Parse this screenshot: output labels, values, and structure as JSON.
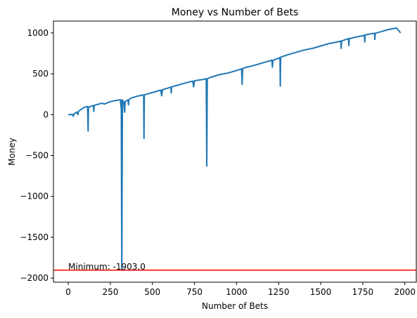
{
  "chart_data": {
    "type": "line",
    "title": "Money vs Number of Bets",
    "xlabel": "Number of Bets",
    "ylabel": "Money",
    "xlim": [
      -88,
      2068
    ],
    "ylim": [
      -2050,
      1145
    ],
    "xticks": [
      0,
      250,
      500,
      750,
      1000,
      1250,
      1500,
      1750,
      2000
    ],
    "yticks": [
      -2000,
      -1500,
      -1000,
      -500,
      0,
      500,
      1000
    ],
    "grid": false,
    "series": [
      {
        "color": "#1f77b4",
        "x": [
          0,
          25,
          30,
          33,
          35,
          50,
          58,
          60,
          80,
          95,
          115,
          118,
          120,
          145,
          150,
          152,
          154,
          156,
          200,
          215,
          250,
          300,
          310,
          313,
          315,
          318,
          322,
          330,
          335,
          338,
          340,
          345,
          350,
          355,
          358,
          360,
          362,
          370,
          400,
          440,
          448,
          450,
          452,
          455,
          500,
          550,
          555,
          560,
          600,
          610,
          612,
          614,
          650,
          700,
          740,
          745,
          750,
          800,
          820,
          823,
          826,
          829,
          832,
          850,
          900,
          950,
          1000,
          1030,
          1033,
          1036,
          1040,
          1050,
          1100,
          1150,
          1200,
          1210,
          1213,
          1216,
          1250,
          1258,
          1260,
          1262,
          1265,
          1300,
          1350,
          1400,
          1450,
          1500,
          1550,
          1600,
          1620,
          1622,
          1624,
          1650,
          1665,
          1667,
          1670,
          1700,
          1760,
          1762,
          1764,
          1800,
          1820,
          1822,
          1824,
          1850,
          1900,
          1950,
          1975
        ],
        "y": [
          0,
          2,
          -20,
          5,
          10,
          30,
          0,
          40,
          70,
          90,
          100,
          -200,
          90,
          110,
          110,
          40,
          110,
          115,
          140,
          130,
          160,
          180,
          180,
          100,
          180,
          -1903,
          180,
          150,
          30,
          160,
          160,
          170,
          175,
          180,
          120,
          180,
          185,
          200,
          220,
          240,
          240,
          -290,
          240,
          245,
          270,
          300,
          230,
          305,
          330,
          335,
          265,
          340,
          360,
          390,
          410,
          340,
          415,
          430,
          440,
          -630,
          440,
          440,
          445,
          460,
          490,
          510,
          540,
          560,
          370,
          560,
          565,
          575,
          600,
          630,
          660,
          665,
          580,
          665,
          690,
          700,
          350,
          700,
          705,
          730,
          760,
          790,
          810,
          840,
          870,
          890,
          900,
          810,
          900,
          920,
          930,
          845,
          930,
          945,
          970,
          890,
          975,
          990,
          995,
          920,
          995,
          1010,
          1040,
          1060,
          1000
        ]
      }
    ],
    "hline": {
      "y": -1903,
      "color": "#ff0000"
    },
    "annotation": {
      "text": "Minimum: -1903.0",
      "x": 0,
      "y": -1903
    }
  }
}
